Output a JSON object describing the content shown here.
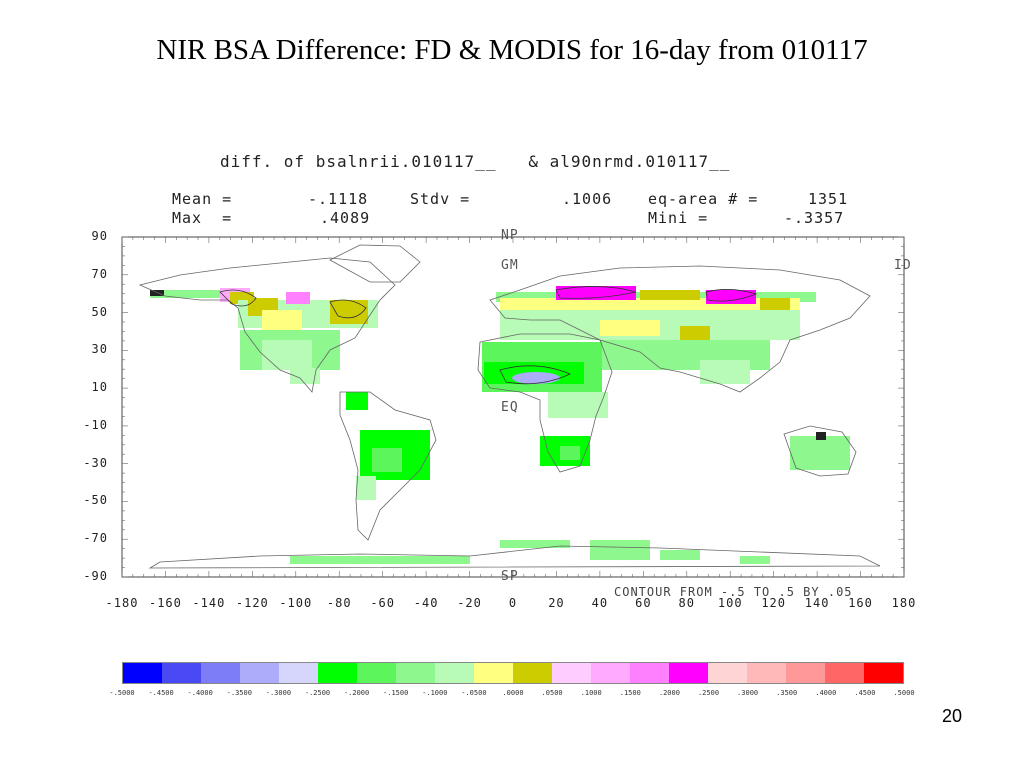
{
  "slide": {
    "title": "NIR BSA Difference: FD & MODIS for 16-day from 010117",
    "page_number": "20"
  },
  "plot": {
    "subtitle": "diff. of bsalnrii.010117__   & al90nrmd.010117__",
    "stats": {
      "mean_label": "Mean =",
      "mean_value": "-.1118",
      "stdv_label": "Stdv =",
      "stdv_value": ".1006",
      "eqarea_label": "eq-area # =",
      "eqarea_value": "1351",
      "max_label": "Max  =",
      "max_value": ".4089",
      "min_label": "Mini =",
      "min_value": "-.3357"
    },
    "markers": {
      "np": "NP",
      "gm": "GM",
      "eq": "EQ",
      "sp": "SP",
      "id": "ID"
    },
    "contour_note": "CONTOUR FROM -.5 TO .5 BY .05",
    "y_ticks": [
      "90",
      "70",
      "50",
      "30",
      "10",
      "-10",
      "-30",
      "-50",
      "-70",
      "-90"
    ],
    "x_ticks": [
      "-180",
      "-160",
      "-140",
      "-120",
      "-100",
      "-80",
      "-60",
      "-40",
      "-20",
      "0",
      "20",
      "40",
      "60",
      "80",
      "100",
      "120",
      "140",
      "160",
      "180"
    ]
  },
  "colorbar": {
    "colors": [
      "#0000ff",
      "#4a4af5",
      "#7d7df7",
      "#acacfa",
      "#d6d6fc",
      "#00ff00",
      "#5cf55c",
      "#8ef78e",
      "#b7fbb7",
      "#ffff80",
      "#cccc00",
      "#ffccff",
      "#ffaaff",
      "#ff80ff",
      "#ff00ff",
      "#ffd4d4",
      "#ffb9b9",
      "#ff9999",
      "#ff6666",
      "#ff0000"
    ],
    "labels": [
      "-.5000",
      "-.4500",
      "-.4000",
      "-.3500",
      "-.3000",
      "-.2500",
      "-.2000",
      "-.1500",
      "-.1000",
      "-.0500",
      ".0000",
      ".0500",
      ".1000",
      ".1500",
      ".2000",
      ".2500",
      ".3000",
      ".3500",
      ".4000",
      ".4500",
      ".5000"
    ]
  }
}
